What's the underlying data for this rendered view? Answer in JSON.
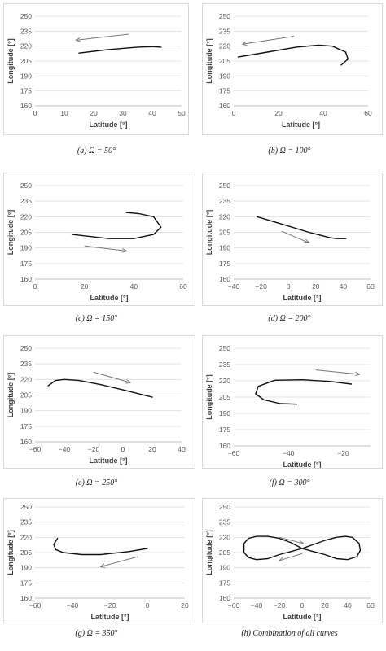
{
  "chart_data": [
    {
      "type": "line",
      "caption": "(a) Ω = 50°",
      "xlabel": "Latitude [°]",
      "ylabel": "Longitude [°]",
      "xlim": [
        0,
        50
      ],
      "ylim": [
        160,
        250
      ],
      "xticks": [
        0,
        10,
        20,
        30,
        40,
        50
      ],
      "yticks": [
        160,
        175,
        190,
        205,
        220,
        235,
        250
      ],
      "series": [
        {
          "values": [
            [
              15,
              213
            ],
            [
              25,
              216.5
            ],
            [
              35,
              219
            ],
            [
              40,
              219.5
            ],
            [
              43,
              219
            ]
          ]
        }
      ],
      "arrow": {
        "from": [
          32,
          232
        ],
        "to": [
          14,
          226
        ]
      }
    },
    {
      "type": "line",
      "caption": "(b) Ω = 100°",
      "xlabel": "Latitude [°]",
      "ylabel": "Longitude [°]",
      "xlim": [
        0,
        60
      ],
      "ylim": [
        160,
        250
      ],
      "xticks": [
        0,
        20,
        40,
        60
      ],
      "yticks": [
        160,
        175,
        190,
        205,
        220,
        235,
        250
      ],
      "series": [
        {
          "values": [
            [
              2,
              209
            ],
            [
              15,
              214
            ],
            [
              28,
              219
            ],
            [
              38,
              221
            ],
            [
              44,
              220
            ],
            [
              50,
              214
            ],
            [
              51,
              207
            ],
            [
              48,
              201
            ]
          ]
        }
      ],
      "arrow": {
        "from": [
          27,
          230
        ],
        "to": [
          4,
          222
        ]
      }
    },
    {
      "type": "line",
      "caption": "(c) Ω = 150°",
      "xlabel": "Latitude [°]",
      "ylabel": "Longitude [°]",
      "xlim": [
        0,
        60
      ],
      "ylim": [
        160,
        250
      ],
      "xticks": [
        0,
        20,
        40,
        60
      ],
      "yticks": [
        160,
        175,
        190,
        205,
        220,
        235,
        250
      ],
      "series": [
        {
          "values": [
            [
              15,
              203
            ],
            [
              30,
              199
            ],
            [
              40,
              199
            ],
            [
              48,
              203
            ],
            [
              51,
              210
            ],
            [
              48,
              220
            ],
            [
              42,
              223
            ],
            [
              37,
              224
            ]
          ]
        }
      ],
      "arrow": {
        "from": [
          20,
          192
        ],
        "to": [
          37,
          187
        ]
      }
    },
    {
      "type": "line",
      "caption": "(d) Ω = 200°",
      "xlabel": "Latitude [°]",
      "ylabel": "Longitude [°]",
      "xlim": [
        -40,
        60
      ],
      "ylim": [
        160,
        250
      ],
      "xticks": [
        -40,
        -20,
        0,
        20,
        40,
        60
      ],
      "yticks": [
        160,
        175,
        190,
        205,
        220,
        235,
        250
      ],
      "series": [
        {
          "values": [
            [
              -23,
              220
            ],
            [
              -5,
              213
            ],
            [
              15,
              205
            ],
            [
              30,
              200
            ],
            [
              35,
              199
            ],
            [
              42,
              199
            ]
          ]
        }
      ],
      "arrow": {
        "from": [
          -5,
          206
        ],
        "to": [
          15,
          195
        ]
      }
    },
    {
      "type": "line",
      "caption": "(e) Ω = 250°",
      "xlabel": "Latitude [°]",
      "ylabel": "Longitude [°]",
      "xlim": [
        -60,
        40
      ],
      "ylim": [
        160,
        250
      ],
      "xticks": [
        -60,
        -40,
        -20,
        0,
        20,
        40
      ],
      "yticks": [
        160,
        175,
        190,
        205,
        220,
        235,
        250
      ],
      "series": [
        {
          "values": [
            [
              -51,
              214
            ],
            [
              -46,
              219
            ],
            [
              -40,
              220
            ],
            [
              -30,
              219
            ],
            [
              -15,
              215
            ],
            [
              0,
              210
            ],
            [
              20,
              203
            ]
          ]
        }
      ],
      "arrow": {
        "from": [
          -20,
          227
        ],
        "to": [
          5,
          217
        ]
      }
    },
    {
      "type": "line",
      "caption": "(f) Ω = 300°",
      "xlabel": "Latitude [°]",
      "ylabel": "Longitude [°]",
      "xlim": [
        -60,
        -10
      ],
      "ylim": [
        160,
        250
      ],
      "xticks": [
        -60,
        -40,
        -20
      ],
      "yticks": [
        160,
        175,
        190,
        205,
        220,
        235,
        250
      ],
      "series": [
        {
          "values": [
            [
              -17,
              217
            ],
            [
              -25,
              219.5
            ],
            [
              -35,
              221
            ],
            [
              -45,
              220.5
            ],
            [
              -51,
              215
            ],
            [
              -52,
              208
            ],
            [
              -49,
              202.5
            ],
            [
              -43,
              199
            ],
            [
              -37,
              198.5
            ]
          ]
        }
      ],
      "arrow": {
        "from": [
          -30,
          230
        ],
        "to": [
          -14,
          226
        ]
      }
    },
    {
      "type": "line",
      "caption": "(g) Ω = 350°",
      "xlabel": "Latitude [°]",
      "ylabel": "Longitude [°]",
      "xlim": [
        -60,
        20
      ],
      "ylim": [
        160,
        250
      ],
      "xticks": [
        -60,
        -40,
        -20,
        0,
        20
      ],
      "yticks": [
        160,
        175,
        190,
        205,
        220,
        235,
        250
      ],
      "series": [
        {
          "values": [
            [
              -48,
              219
            ],
            [
              -50,
              213
            ],
            [
              -49,
              208
            ],
            [
              -45,
              205
            ],
            [
              -35,
              203
            ],
            [
              -25,
              203
            ],
            [
              -10,
              206
            ],
            [
              0,
              209
            ]
          ]
        }
      ],
      "arrow": {
        "from": [
          -5,
          201
        ],
        "to": [
          -25,
          191
        ]
      }
    },
    {
      "type": "line",
      "caption": "(h) Combination of all curves",
      "xlabel": "Latitude [°]",
      "ylabel": "Longitude [°]",
      "xlim": [
        -60,
        60
      ],
      "ylim": [
        160,
        250
      ],
      "xticks": [
        -60,
        -40,
        -20,
        0,
        20,
        40,
        60
      ],
      "yticks": [
        160,
        175,
        190,
        205,
        220,
        235,
        250
      ],
      "series": [
        {
          "values": [
            [
              0,
              209
            ],
            [
              -10,
              215
            ],
            [
              -20,
              219
            ],
            [
              -30,
              221
            ],
            [
              -40,
              221
            ],
            [
              -47,
              219
            ],
            [
              -51,
              214
            ],
            [
              -51,
              205
            ],
            [
              -47,
              200
            ],
            [
              -40,
              198
            ],
            [
              -30,
              199
            ],
            [
              -20,
              203
            ],
            [
              -10,
              206
            ],
            [
              0,
              209
            ],
            [
              10,
              213
            ],
            [
              20,
              217
            ],
            [
              30,
              220
            ],
            [
              38,
              221
            ],
            [
              44,
              220
            ],
            [
              50,
              214
            ],
            [
              51,
              207
            ],
            [
              48,
              201
            ],
            [
              40,
              198
            ],
            [
              30,
              199
            ],
            [
              20,
              203
            ],
            [
              10,
              206
            ],
            [
              0,
              209
            ]
          ]
        }
      ],
      "arrows": [
        {
          "from": [
            -20,
            220
          ],
          "to": [
            1,
            214
          ]
        },
        {
          "from": [
            0,
            204
          ],
          "to": [
            -20,
            197
          ]
        }
      ]
    }
  ]
}
